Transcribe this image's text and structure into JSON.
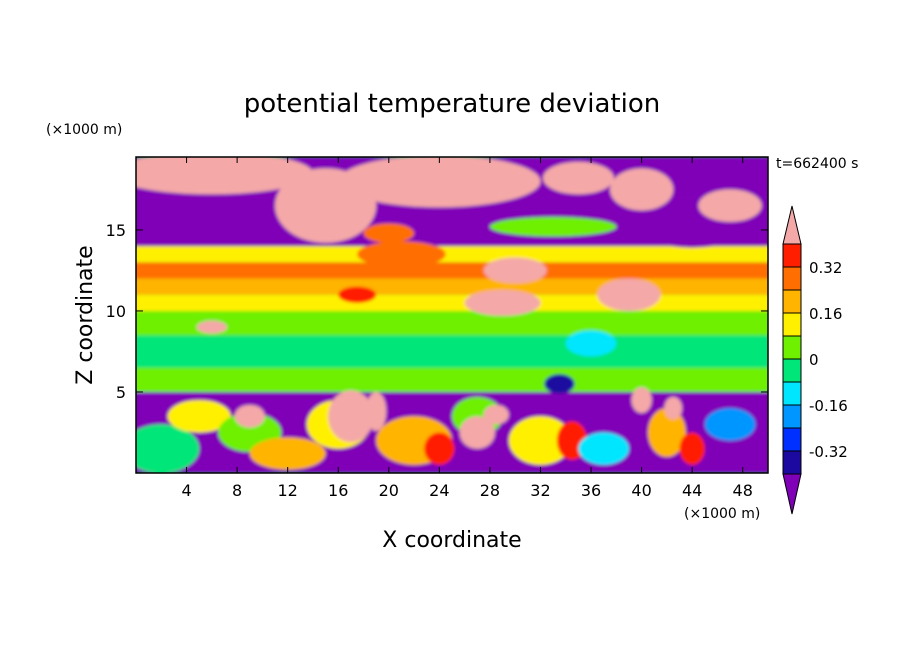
{
  "chart_data": {
    "type": "heatmap",
    "title": "potential temperature deviation",
    "xlabel": "X coordinate",
    "ylabel": "Z coordinate",
    "x_unit": "(×1000 m)",
    "y_unit": "(×1000 m)",
    "time_label": "t=662400 s",
    "xlim": [
      0,
      50
    ],
    "ylim": [
      0,
      19.5
    ],
    "x_ticks": [
      4,
      8,
      12,
      16,
      20,
      24,
      28,
      32,
      36,
      40,
      44,
      48
    ],
    "y_ticks": [
      5,
      10,
      15
    ],
    "colorbar": {
      "levels": [
        -0.4,
        -0.32,
        -0.24,
        -0.16,
        -0.08,
        0,
        0.08,
        0.16,
        0.24,
        0.32,
        0.4
      ],
      "labels": [
        "0.32",
        "0.16",
        "0",
        "-0.16",
        "-0.32"
      ],
      "label_values": [
        0.32,
        0.16,
        0,
        -0.16,
        -0.32
      ],
      "colors": [
        "#1c0aa0",
        "#0030ff",
        "#0096ff",
        "#00e6ff",
        "#00e678",
        "#6ef000",
        "#fff000",
        "#ffb400",
        "#ff6e00",
        "#ff1e00"
      ],
      "under_color": "#8000b8",
      "over_color": "#f4a8a8"
    },
    "layers": [
      {
        "z": [
          0,
          5
        ],
        "description_level": "mixed",
        "dominant": [
          -0.45,
          0.45
        ]
      },
      {
        "z": [
          5,
          8
        ],
        "dominant": [
          -0.1,
          0.05
        ]
      },
      {
        "z": [
          8,
          11
        ],
        "dominant": [
          0,
          0.12
        ]
      },
      {
        "z": [
          11,
          14
        ],
        "dominant": [
          0.1,
          0.3
        ]
      },
      {
        "z": [
          14,
          19.5
        ],
        "dominant": [
          -0.45,
          0.45
        ]
      }
    ]
  }
}
